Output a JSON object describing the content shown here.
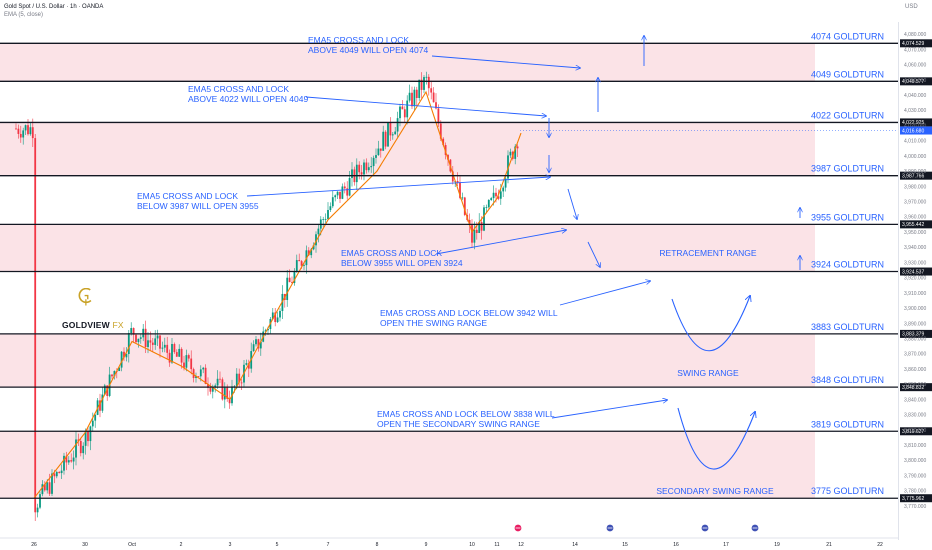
{
  "header": {
    "symbol_line": "Gold Spot / U.S. Dollar · 1h · OANDA",
    "indicator_line": "EMA (5, close)",
    "currency": "USD"
  },
  "brand": {
    "name_main": "GOLDVIEW",
    "name_suffix": "FX"
  },
  "colors": {
    "band": "#fbe3e7",
    "bull": "#089981",
    "bear": "#f23645",
    "ema": "#f57c00",
    "annotation": "#2962ff",
    "level_line": "#131722"
  },
  "chart_data": {
    "type": "line",
    "title": "Gold Spot / U.S. Dollar · 1h · OANDA",
    "ylim": [
      3762,
      4088
    ],
    "y_ticks": [
      3770,
      3780,
      3790,
      3800,
      3810,
      3820,
      3830,
      3840,
      3850,
      3860,
      3870,
      3880,
      3890,
      3900,
      3910,
      3920,
      3930,
      3940,
      3950,
      3960,
      3970,
      3980,
      3990,
      4000,
      4010,
      4020,
      4030,
      4040,
      4050,
      4060,
      4070,
      4080
    ],
    "x_ticks": [
      "26",
      "30",
      "Oct",
      "2",
      "3",
      "5",
      "7",
      "8",
      "9",
      "10",
      "11",
      "12",
      "14",
      "15",
      "16",
      "17",
      "19",
      "21",
      "22"
    ],
    "series": [
      {
        "name": "EMA (5, close)",
        "x": [
          "26",
          "30",
          "Oct",
          "2",
          "3",
          "5",
          "7",
          "8",
          "9",
          "10",
          "11",
          "12"
        ],
        "values": [
          3775,
          3818,
          3878,
          3862,
          3840,
          3898,
          3958,
          3990,
          4042,
          3950,
          3972,
          4015
        ]
      }
    ],
    "price_path": [
      [
        "26",
        3770
      ],
      [
        "30",
        3815
      ],
      [
        "Oct",
        3885
      ],
      [
        "2",
        3866
      ],
      [
        "3",
        3842
      ],
      [
        "5",
        3900
      ],
      [
        "7",
        3965
      ],
      [
        "8",
        4005
      ],
      [
        "9",
        4050
      ],
      [
        "10",
        3945
      ],
      [
        "11",
        3975
      ],
      [
        "12",
        4018
      ]
    ],
    "levels": [
      {
        "value": 4074,
        "label": "4074 GOLDTURN",
        "price_label": "4,074.529"
      },
      {
        "value": 4049,
        "label": "4049  GOLDTURN",
        "price_label": "4,049.577"
      },
      {
        "value": 4022,
        "label": "4022 GOLDTURN",
        "price_label": "4,022.925"
      },
      {
        "value": 3987,
        "label": "3987 GOLDTURN",
        "price_label": "3,987.766"
      },
      {
        "value": 3955,
        "label": "3955 GOLDTURN",
        "price_label": "3,955.442"
      },
      {
        "value": 3924,
        "label": "3924 GOLDTURN",
        "price_label": "3,924.537"
      },
      {
        "value": 3883,
        "label": "3883 GOLDTURN",
        "price_label": "3,883.379"
      },
      {
        "value": 3848,
        "label": "3848 GOLDTURN",
        "price_label": "3,848.832"
      },
      {
        "value": 3819,
        "label": "3819 GOLDTURN",
        "price_label": "3,819.627"
      },
      {
        "value": 3775,
        "label": "3775 GOLDTURN",
        "price_label": "3,775.962"
      }
    ],
    "current_price": {
      "value": 4016.68,
      "label": "4,016.680"
    },
    "bands": [
      [
        4049,
        4074
      ],
      [
        3987,
        4022
      ],
      [
        3924,
        3955
      ],
      [
        3848,
        3883
      ],
      [
        3775,
        3819
      ]
    ],
    "annotations": [
      {
        "lines": [
          "EMA5 CROSS AND LOCK",
          "ABOVE 4049 WILL OPEN 4074"
        ]
      },
      {
        "lines": [
          "EMA5 CROSS AND LOCK",
          "ABOVE 4022 WILL OPEN 4049"
        ]
      },
      {
        "lines": [
          "EMA5 CROSS AND LOCK",
          "BELOW 3987 WILL OPEN 3955"
        ]
      },
      {
        "lines": [
          "EMA5 CROSS AND LOCK",
          "BELOW 3955 WILL OPEN 3924"
        ]
      },
      {
        "lines": [
          "EMA5 CROSS AND LOCK BELOW 3942 WILL",
          "OPEN THE SWING RANGE"
        ]
      },
      {
        "lines": [
          "EMA5 CROSS AND LOCK BELOW 3838 WILL",
          "OPEN THE SECONDARY SWING RANGE"
        ]
      }
    ],
    "range_labels": [
      "RETRACEMENT RANGE",
      "SWING RANGE",
      "SECONDARY SWING RANGE"
    ]
  }
}
